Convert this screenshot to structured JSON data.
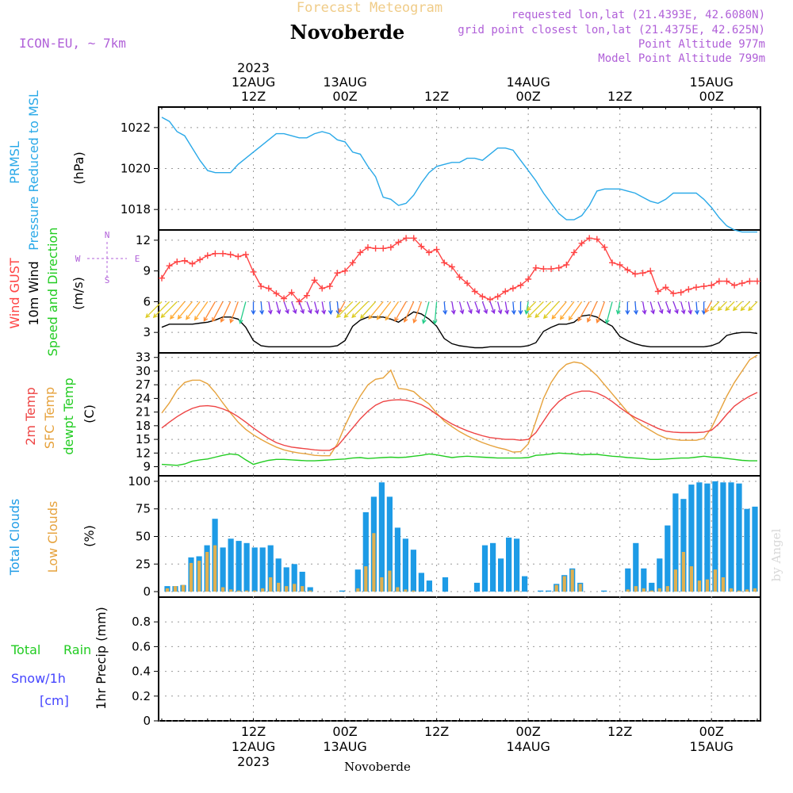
{
  "header": {
    "top_label": "Forecast Meteogram",
    "title": "Novoberde",
    "model": "ICON-EU, ~ 7km",
    "requested": "requested lon,lat (21.4393E, 42.6080N)",
    "gridpoint": "grid point closest lon,lat (21.4375E, 42.625N)",
    "point_alt": "Point Altitude 977m",
    "model_alt": "Model Point Altitude 799m",
    "footer": "Novoberde",
    "watermark": "by Angel"
  },
  "colors": {
    "pressure": "#2aa9e8",
    "gust": "#ff4444",
    "wind": "#000000",
    "temp": "#ee4444",
    "sfc": "#e6a23c",
    "dew": "#22cc22",
    "total_clouds": "#1d9be6",
    "low_clouds": "#e0b050",
    "rain": "#22cc22",
    "snow": "#4444ff",
    "purple": "#b060d8"
  },
  "chart_data": {
    "time_axis": {
      "top_labels": [
        {
          "t": 12,
          "lines": [
            "2023",
            "12AUG",
            "12Z"
          ]
        },
        {
          "t": 24,
          "lines": [
            "13AUG",
            "00Z"
          ]
        },
        {
          "t": 36,
          "lines": [
            "12Z"
          ]
        },
        {
          "t": 48,
          "lines": [
            "14AUG",
            "00Z"
          ]
        },
        {
          "t": 60,
          "lines": [
            "12Z"
          ]
        },
        {
          "t": 72,
          "lines": [
            "15AUG",
            "00Z"
          ]
        }
      ],
      "bottom_labels": [
        {
          "t": 12,
          "lines": [
            "12Z",
            "12AUG",
            "2023"
          ]
        },
        {
          "t": 24,
          "lines": [
            "00Z",
            "13AUG"
          ]
        },
        {
          "t": 36,
          "lines": [
            "12Z"
          ]
        },
        {
          "t": 48,
          "lines": [
            "00Z",
            "14AUG"
          ]
        },
        {
          "t": 60,
          "lines": [
            "12Z"
          ]
        },
        {
          "t": 72,
          "lines": [
            "00Z",
            "15AUG"
          ]
        }
      ],
      "t_start": 0,
      "t_end": 78,
      "unit": "hours since 12AUG 00Z"
    },
    "panels": [
      {
        "type": "line",
        "id": "pressure",
        "labels": [
          "PRMSL",
          "Pressure Reduced to MSL"
        ],
        "unit": "(hPa)",
        "ylim": [
          1017,
          1023
        ],
        "yticks": [
          1018,
          1020,
          1022
        ],
        "series": [
          {
            "name": "PRMSL",
            "t": [
              0,
              1,
              2,
              3,
              4,
              5,
              6,
              7,
              8,
              9,
              10,
              11,
              12,
              13,
              14,
              15,
              16,
              17,
              18,
              19,
              20,
              21,
              22,
              23,
              24,
              25,
              26,
              27,
              28,
              29,
              30,
              31,
              32,
              33,
              34,
              35,
              36,
              37,
              38,
              39,
              40,
              41,
              42,
              43,
              44,
              45,
              46,
              47,
              48,
              49,
              50,
              51,
              52,
              53,
              54,
              55,
              56,
              57,
              58,
              59,
              60,
              61,
              62,
              63,
              64,
              65,
              66,
              67,
              68,
              69,
              70,
              71,
              72,
              73,
              74,
              75,
              76,
              77,
              78
            ],
            "values": [
              1022.5,
              1022.3,
              1021.8,
              1021.6,
              1021.0,
              1020.4,
              1019.9,
              1019.8,
              1019.8,
              1019.8,
              1020.2,
              1020.5,
              1020.8,
              1021.1,
              1021.4,
              1021.7,
              1021.7,
              1021.6,
              1021.5,
              1021.5,
              1021.7,
              1021.8,
              1021.7,
              1021.4,
              1021.3,
              1020.8,
              1020.7,
              1020.1,
              1019.6,
              1018.6,
              1018.5,
              1018.2,
              1018.3,
              1018.7,
              1019.3,
              1019.8,
              1020.1,
              1020.2,
              1020.3,
              1020.3,
              1020.5,
              1020.5,
              1020.4,
              1020.7,
              1021.0,
              1021.0,
              1020.9,
              1020.4,
              1019.9,
              1019.4,
              1018.8,
              1018.3,
              1017.8,
              1017.5,
              1017.5,
              1017.7,
              1018.2,
              1018.9,
              1019.0,
              1019.0,
              1019.0,
              1018.9,
              1018.8,
              1018.6,
              1018.4,
              1018.3,
              1018.5,
              1018.8,
              1018.8,
              1018.8,
              1018.8,
              1018.5,
              1018.1,
              1017.6,
              1017.2,
              1017.0,
              1016.9,
              1016.9,
              1016.9
            ]
          }
        ]
      },
      {
        "type": "line",
        "id": "wind",
        "labels": [
          "Wind GUST",
          "10m Wind",
          "Speed and Direction"
        ],
        "unit": "(m/s)",
        "ylim": [
          1,
          13
        ],
        "yticks": [
          3,
          6,
          9,
          12
        ],
        "compass": [
          "N",
          "W",
          "E",
          "S"
        ],
        "series": [
          {
            "name": "Wind GUST",
            "values": [
              8.3,
              9.5,
              9.9,
              10.0,
              9.7,
              10.1,
              10.5,
              10.7,
              10.7,
              10.6,
              10.4,
              10.6,
              8.9,
              7.5,
              7.3,
              6.8,
              6.3,
              6.9,
              6.0,
              6.6,
              8.1,
              7.3,
              7.5,
              8.8,
              9.0,
              9.8,
              10.8,
              11.3,
              11.2,
              11.2,
              11.3,
              11.8,
              12.2,
              12.2,
              11.4,
              10.8,
              11.1,
              9.8,
              9.4,
              8.4,
              7.8,
              7.0,
              6.5,
              6.2,
              6.5,
              7.0,
              7.3,
              7.6,
              8.2,
              9.3,
              9.2,
              9.2,
              9.3,
              9.6,
              10.8,
              11.7,
              12.2,
              12.1,
              11.3,
              9.8,
              9.6,
              9.1,
              8.7,
              8.8,
              9.0,
              7.0,
              7.4,
              6.8,
              6.9,
              7.2,
              7.4,
              7.5,
              7.6,
              8.0,
              8.0,
              7.6,
              7.8,
              8.0,
              8.0
            ]
          },
          {
            "name": "10m Wind",
            "values": [
              3.5,
              3.8,
              3.8,
              3.8,
              3.8,
              3.9,
              4.0,
              4.2,
              4.5,
              4.5,
              4.3,
              3.5,
              2.2,
              1.7,
              1.6,
              1.6,
              1.6,
              1.6,
              1.6,
              1.6,
              1.6,
              1.6,
              1.6,
              1.7,
              2.2,
              3.6,
              4.2,
              4.5,
              4.5,
              4.5,
              4.3,
              4.0,
              4.5,
              5.0,
              4.8,
              4.3,
              3.6,
              2.4,
              1.9,
              1.7,
              1.6,
              1.5,
              1.5,
              1.6,
              1.6,
              1.6,
              1.6,
              1.6,
              1.7,
              2.0,
              3.1,
              3.5,
              3.8,
              3.8,
              4.0,
              4.6,
              4.7,
              4.5,
              4.0,
              3.6,
              2.6,
              2.2,
              1.9,
              1.7,
              1.6,
              1.6,
              1.6,
              1.6,
              1.6,
              1.6,
              1.6,
              1.6,
              1.7,
              2.0,
              2.7,
              2.9,
              3.0,
              3.0,
              2.9
            ]
          }
        ],
        "wind_dir_deg": [
          45,
          45,
          45,
          40,
          40,
          38,
          35,
          30,
          28,
          25,
          20,
          15,
          0,
          355,
          350,
          345,
          340,
          340,
          340,
          340,
          345,
          350,
          355,
          355,
          30,
          45,
          45,
          45,
          42,
          40,
          38,
          35,
          30,
          25,
          20,
          15,
          5,
          355,
          350,
          345,
          340,
          340,
          340,
          340,
          345,
          350,
          355,
          0,
          10,
          45,
          45,
          45,
          42,
          40,
          38,
          35,
          30,
          25,
          20,
          15,
          10,
          0,
          355,
          350,
          345,
          340,
          340,
          340,
          345,
          350,
          355,
          0,
          30,
          45,
          45,
          45,
          45,
          45,
          45
        ]
      },
      {
        "type": "line",
        "id": "temp",
        "labels": [
          "2m Temp",
          "SFC Temp",
          "dewpt Temp"
        ],
        "unit": "(C)",
        "ylim": [
          7,
          34
        ],
        "yticks": [
          9,
          12,
          15,
          18,
          21,
          24,
          27,
          30,
          33
        ],
        "series": [
          {
            "name": "2m Temp",
            "values": [
              17.5,
              18.8,
              20.0,
              21.0,
              21.8,
              22.3,
              22.4,
              22.2,
              21.7,
              21.0,
              20.0,
              18.8,
              17.5,
              16.3,
              15.2,
              14.3,
              13.7,
              13.3,
              13.1,
              12.9,
              12.7,
              12.6,
              12.6,
              13.5,
              15.5,
              17.5,
              19.5,
              21.2,
              22.5,
              23.3,
              23.6,
              23.7,
              23.6,
              23.2,
              22.6,
              21.7,
              20.5,
              19.4,
              18.4,
              17.6,
              16.9,
              16.3,
              15.8,
              15.4,
              15.2,
              15.0,
              15.0,
              14.8,
              15.0,
              16.5,
              19.0,
              21.5,
              23.3,
              24.5,
              25.2,
              25.6,
              25.6,
              25.2,
              24.4,
              23.3,
              22.0,
              20.8,
              19.8,
              19.0,
              18.2,
              17.4,
              16.8,
              16.6,
              16.5,
              16.5,
              16.5,
              16.6,
              17.0,
              18.5,
              20.5,
              22.3,
              23.5,
              24.5,
              25.3
            ]
          },
          {
            "name": "SFC Temp",
            "values": [
              20.8,
              23.0,
              25.8,
              27.5,
              28.0,
              28.0,
              27.2,
              25.3,
              23.0,
              20.8,
              18.8,
              17.2,
              16.0,
              15.0,
              14.1,
              13.3,
              12.7,
              12.3,
              12.0,
              11.8,
              11.5,
              11.4,
              11.4,
              14.0,
              18.0,
              21.5,
              24.5,
              27.0,
              28.2,
              28.5,
              30.2,
              26.2,
              26.0,
              25.5,
              24.0,
              22.8,
              20.8,
              19.0,
              17.8,
              16.7,
              15.8,
              15.0,
              14.3,
              13.7,
              13.2,
              12.8,
              12.2,
              12.3,
              14.0,
              19.0,
              24.0,
              27.5,
              30.0,
              31.5,
              32.0,
              31.7,
              30.5,
              29.0,
              27.0,
              25.0,
              23.0,
              21.0,
              19.3,
              18.0,
              17.0,
              16.0,
              15.3,
              15.0,
              14.8,
              14.8,
              14.8,
              15.2,
              17.5,
              21.0,
              24.5,
              27.5,
              30.0,
              32.5,
              33.5
            ]
          },
          {
            "name": "dewpt Temp",
            "values": [
              9.5,
              9.4,
              9.3,
              9.6,
              10.2,
              10.5,
              10.7,
              11.1,
              11.5,
              11.8,
              11.6,
              10.5,
              9.5,
              10.0,
              10.4,
              10.6,
              10.6,
              10.5,
              10.4,
              10.3,
              10.3,
              10.4,
              10.5,
              10.6,
              10.7,
              10.9,
              11.0,
              10.8,
              10.9,
              11.0,
              11.1,
              11.0,
              11.1,
              11.3,
              11.5,
              11.8,
              11.6,
              11.3,
              11.0,
              11.2,
              11.3,
              11.2,
              11.1,
              11.0,
              10.9,
              10.9,
              10.9,
              10.9,
              11.0,
              11.5,
              11.6,
              11.8,
              12.0,
              11.9,
              11.8,
              11.6,
              11.7,
              11.7,
              11.5,
              11.3,
              11.2,
              11.0,
              10.9,
              10.8,
              10.6,
              10.6,
              10.7,
              10.8,
              10.9,
              10.9,
              11.1,
              11.3,
              11.1,
              11.0,
              10.8,
              10.6,
              10.4,
              10.3,
              10.3
            ]
          }
        ]
      },
      {
        "type": "bar",
        "id": "clouds",
        "labels": [
          "Total Clouds",
          "Low Clouds"
        ],
        "unit": "(%)",
        "ylim": [
          -5,
          105
        ],
        "yticks": [
          0,
          25,
          50,
          75,
          100
        ],
        "series": [
          {
            "name": "Total Clouds",
            "values": [
              5,
              5,
              6,
              31,
              32,
              42,
              66,
              40,
              48,
              46,
              44,
              40,
              40,
              42,
              30,
              22,
              25,
              18,
              4,
              0,
              0,
              0,
              1,
              0,
              20,
              72,
              86,
              99,
              86,
              58,
              48,
              38,
              17,
              10,
              0,
              13,
              0,
              0,
              0,
              8,
              42,
              44,
              30,
              49,
              48,
              14,
              0,
              1,
              1,
              7,
              15,
              21,
              8,
              0,
              0,
              1,
              0,
              0,
              21,
              44,
              21,
              8,
              30,
              60,
              89,
              84,
              97,
              99,
              98,
              100,
              99,
              99,
              98,
              75,
              77
            ]
          },
          {
            "name": "Low Clouds",
            "values": [
              3,
              5,
              6,
              26,
              28,
              36,
              42,
              4,
              2,
              1,
              1,
              1,
              3,
              13,
              8,
              5,
              7,
              5,
              1,
              0,
              0,
              0,
              0,
              0,
              3,
              23,
              53,
              13,
              19,
              4,
              2,
              1,
              0,
              0,
              0,
              0,
              0,
              0,
              0,
              0,
              0,
              0,
              0,
              0,
              1,
              0,
              0,
              0,
              0,
              6,
              14,
              20,
              7,
              0,
              0,
              0,
              0,
              0,
              2,
              5,
              3,
              1,
              3,
              5,
              20,
              36,
              23,
              10,
              11,
              20,
              13,
              3,
              1,
              2,
              3
            ]
          }
        ]
      },
      {
        "type": "bar",
        "id": "precip",
        "labels": [
          "Total",
          "Rain",
          "Snow/1h",
          "[cm]"
        ],
        "unit": "1hr Precip (mm)",
        "ylim": [
          0,
          1
        ],
        "yticks": [
          0,
          0.2,
          0.4,
          0.6,
          0.8
        ],
        "series": [
          {
            "name": "Rain",
            "values": []
          },
          {
            "name": "Snow",
            "values": []
          }
        ]
      }
    ]
  }
}
